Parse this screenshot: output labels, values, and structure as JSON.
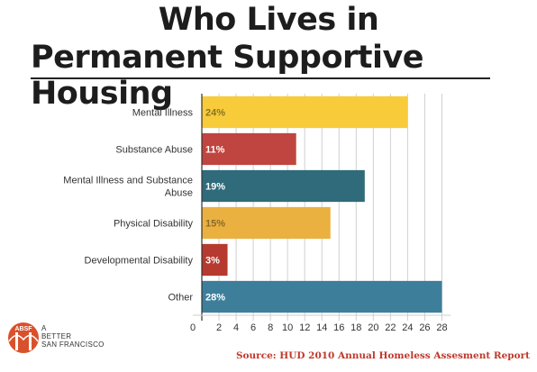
{
  "title_line1": "Who Lives in",
  "title_line2": "Permanent Supportive Housing",
  "source": "Source: HUD 2010 Annual Homeless Assesment Report",
  "logo": {
    "badge": "ABSF",
    "line1": "A",
    "line2": "BETTER",
    "line3": "SAN FRANCISCO"
  },
  "chart_data": {
    "type": "bar",
    "orientation": "horizontal",
    "categories": [
      [
        "Mental Illness"
      ],
      [
        "Substance Abuse"
      ],
      [
        "Mental Illness and Substance",
        "Abuse"
      ],
      [
        "Physical Disability"
      ],
      [
        "Developmental Disability"
      ],
      [
        "Other"
      ]
    ],
    "values": [
      24,
      11,
      19,
      15,
      3,
      28
    ],
    "value_labels": [
      "24%",
      "11%",
      "19%",
      "15%",
      "3%",
      "28%"
    ],
    "colors": [
      "#f7cb3a",
      "#c0443f",
      "#2f6b7a",
      "#eab141",
      "#b63a2f",
      "#3d7f9a"
    ],
    "label_colors": [
      "#8a7326",
      "#ffffff",
      "#ffffff",
      "#8a6a2a",
      "#ffffff",
      "#ffffff"
    ],
    "xticks": [
      0,
      2,
      4,
      6,
      8,
      10,
      12,
      14,
      16,
      18,
      20,
      22,
      24,
      26,
      28
    ],
    "xlim": [
      0,
      29
    ],
    "grid": true
  }
}
